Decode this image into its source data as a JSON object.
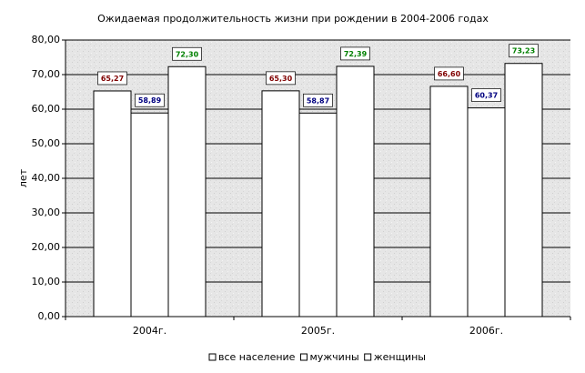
{
  "chart_data": {
    "type": "bar",
    "title": "Ожидаемая продолжительность жизни при рождении  в 2004-2006 годах",
    "y_label": "лет",
    "categories": [
      "2004г.",
      "2005г.",
      "2006г."
    ],
    "series": [
      {
        "name": "все население",
        "color": "#ffffff",
        "label_color": "#800000",
        "values": [
          65.27,
          65.3,
          66.6
        ],
        "value_labels": [
          "65,27",
          "65,30",
          "66,60"
        ]
      },
      {
        "name": "мужчины",
        "color": "#ffffff",
        "label_color": "#000080",
        "values": [
          58.89,
          58.87,
          60.37
        ],
        "value_labels": [
          "58,89",
          "58,87",
          "60,37"
        ]
      },
      {
        "name": "женщины",
        "color": "#ffffff",
        "label_color": "#008000",
        "values": [
          72.3,
          72.39,
          73.23
        ],
        "value_labels": [
          "72,30",
          "72,39",
          "73,23"
        ]
      }
    ],
    "ylim": [
      0,
      80
    ],
    "yticks": [
      {
        "value": 0,
        "label": "0,00"
      },
      {
        "value": 10,
        "label": "10,00"
      },
      {
        "value": 20,
        "label": "20,00"
      },
      {
        "value": 30,
        "label": "30,00"
      },
      {
        "value": 40,
        "label": "40,00"
      },
      {
        "value": 50,
        "label": "50,00"
      },
      {
        "value": 60,
        "label": "60,00"
      },
      {
        "value": 70,
        "label": "70,00"
      },
      {
        "value": 80,
        "label": "80,00"
      }
    ],
    "grid": true,
    "legend": "bottom"
  }
}
